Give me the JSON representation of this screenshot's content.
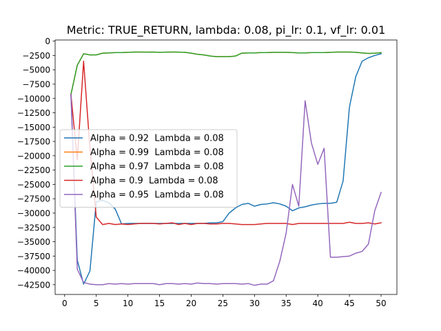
{
  "chart_data": {
    "type": "line",
    "title": "Metric: TRUE_RETURN, lambda: 0.08, pi_lr: 0.1, vf_lr: 0.01",
    "xlabel": "",
    "ylabel": "",
    "xlim": [
      -1.5,
      52.5
    ],
    "ylim": [
      -44200,
      200
    ],
    "x_ticks": [
      0,
      5,
      10,
      15,
      20,
      25,
      30,
      35,
      40,
      45,
      50
    ],
    "y_ticks": [
      0,
      -2500,
      -5000,
      -7500,
      -10000,
      -12500,
      -15000,
      -17500,
      -20000,
      -22500,
      -25000,
      -27500,
      -30000,
      -32500,
      -35000,
      -37500,
      -40000,
      -42500
    ],
    "grid": false,
    "legend_position": "center-left",
    "x": [
      1,
      2,
      3,
      4,
      5,
      6,
      7,
      8,
      9,
      10,
      11,
      12,
      13,
      14,
      15,
      16,
      17,
      18,
      19,
      20,
      21,
      22,
      23,
      24,
      25,
      26,
      27,
      28,
      29,
      30,
      31,
      32,
      33,
      34,
      35,
      36,
      37,
      38,
      39,
      40,
      41,
      42,
      43,
      44,
      45,
      46,
      47,
      48,
      49,
      50
    ],
    "series": [
      {
        "name": "Alpha = 0.92  Lambda = 0.08",
        "color": "#1f77b4",
        "values": [
          -9300,
          -38200,
          -42400,
          -40100,
          -28000,
          -27800,
          -28200,
          -29300,
          -31900,
          -31800,
          -31800,
          -31800,
          -31800,
          -31800,
          -31800,
          -31800,
          -31800,
          -31800,
          -31800,
          -31800,
          -31800,
          -31800,
          -31700,
          -31700,
          -31500,
          -30000,
          -29100,
          -28500,
          -28300,
          -28800,
          -28500,
          -28400,
          -28200,
          -28400,
          -28800,
          -29600,
          -29100,
          -28900,
          -28600,
          -28400,
          -28300,
          -28300,
          -28100,
          -24400,
          -11500,
          -6200,
          -3500,
          -2900,
          -2500,
          -2200
        ]
      },
      {
        "name": "Alpha = 0.99  Lambda = 0.08",
        "color": "#ff7f0e",
        "values": [
          -9300,
          -4200,
          -2200,
          -2400,
          -2400,
          -2100,
          -2050,
          -2000,
          -2000,
          -1950,
          -1900,
          -1900,
          -1920,
          -1900,
          -1950,
          -1920,
          -1900,
          -1920,
          -1950,
          -2100,
          -2300,
          -2400,
          -2600,
          -2700,
          -2700,
          -2700,
          -2600,
          -2100,
          -2050,
          -2050,
          -2000,
          -2000,
          -1950,
          -1950,
          -1950,
          -2000,
          -2050,
          -2050,
          -2000,
          -2000,
          -2000,
          -1950,
          -1900,
          -1900,
          -1900,
          -1950,
          -2050,
          -2150,
          -2100,
          -2000
        ]
      },
      {
        "name": "Alpha = 0.97  Lambda = 0.08",
        "color": "#2ca02c",
        "values": [
          -9300,
          -4200,
          -2200,
          -2400,
          -2400,
          -2100,
          -2050,
          -2000,
          -2000,
          -1950,
          -1900,
          -1900,
          -1920,
          -1900,
          -1950,
          -1920,
          -1900,
          -1920,
          -1950,
          -2100,
          -2300,
          -2400,
          -2600,
          -2700,
          -2700,
          -2700,
          -2600,
          -2100,
          -2050,
          -2050,
          -2000,
          -2000,
          -1950,
          -1950,
          -1950,
          -2000,
          -2050,
          -2050,
          -2000,
          -2000,
          -2000,
          -1950,
          -1900,
          -1900,
          -1900,
          -1950,
          -2050,
          -2150,
          -2100,
          -2000
        ]
      },
      {
        "name": "Alpha = 0.9  Lambda = 0.08",
        "color": "#d62728",
        "values": [
          -9300,
          -20700,
          -3500,
          -18700,
          -30700,
          -32000,
          -31800,
          -32000,
          -31900,
          -32000,
          -31900,
          -31800,
          -31800,
          -31800,
          -31900,
          -31800,
          -31700,
          -32000,
          -31800,
          -32000,
          -31800,
          -31800,
          -31900,
          -31900,
          -31800,
          -31800,
          -31900,
          -32000,
          -32000,
          -32000,
          -31900,
          -31800,
          -31800,
          -31800,
          -31800,
          -32000,
          -31800,
          -31800,
          -31800,
          -31800,
          -31800,
          -31800,
          -31800,
          -31800,
          -31600,
          -31800,
          -31800,
          -31700,
          -31900,
          -31700
        ]
      },
      {
        "name": "Alpha = 0.95  Lambda = 0.08",
        "color": "#9467bd",
        "values": [
          -9300,
          -39800,
          -42100,
          -42400,
          -42500,
          -42500,
          -42300,
          -42400,
          -42300,
          -42400,
          -42300,
          -42300,
          -42300,
          -42300,
          -42500,
          -42300,
          -42300,
          -42400,
          -42300,
          -42400,
          -42200,
          -42300,
          -42300,
          -42400,
          -42300,
          -42300,
          -42300,
          -42400,
          -42300,
          -42600,
          -42400,
          -42400,
          -41800,
          -38400,
          -33500,
          -25000,
          -28800,
          -10400,
          -17800,
          -21500,
          -18700,
          -37700,
          -37700,
          -37600,
          -37500,
          -37000,
          -36700,
          -35400,
          -29600,
          -26400
        ]
      }
    ]
  }
}
